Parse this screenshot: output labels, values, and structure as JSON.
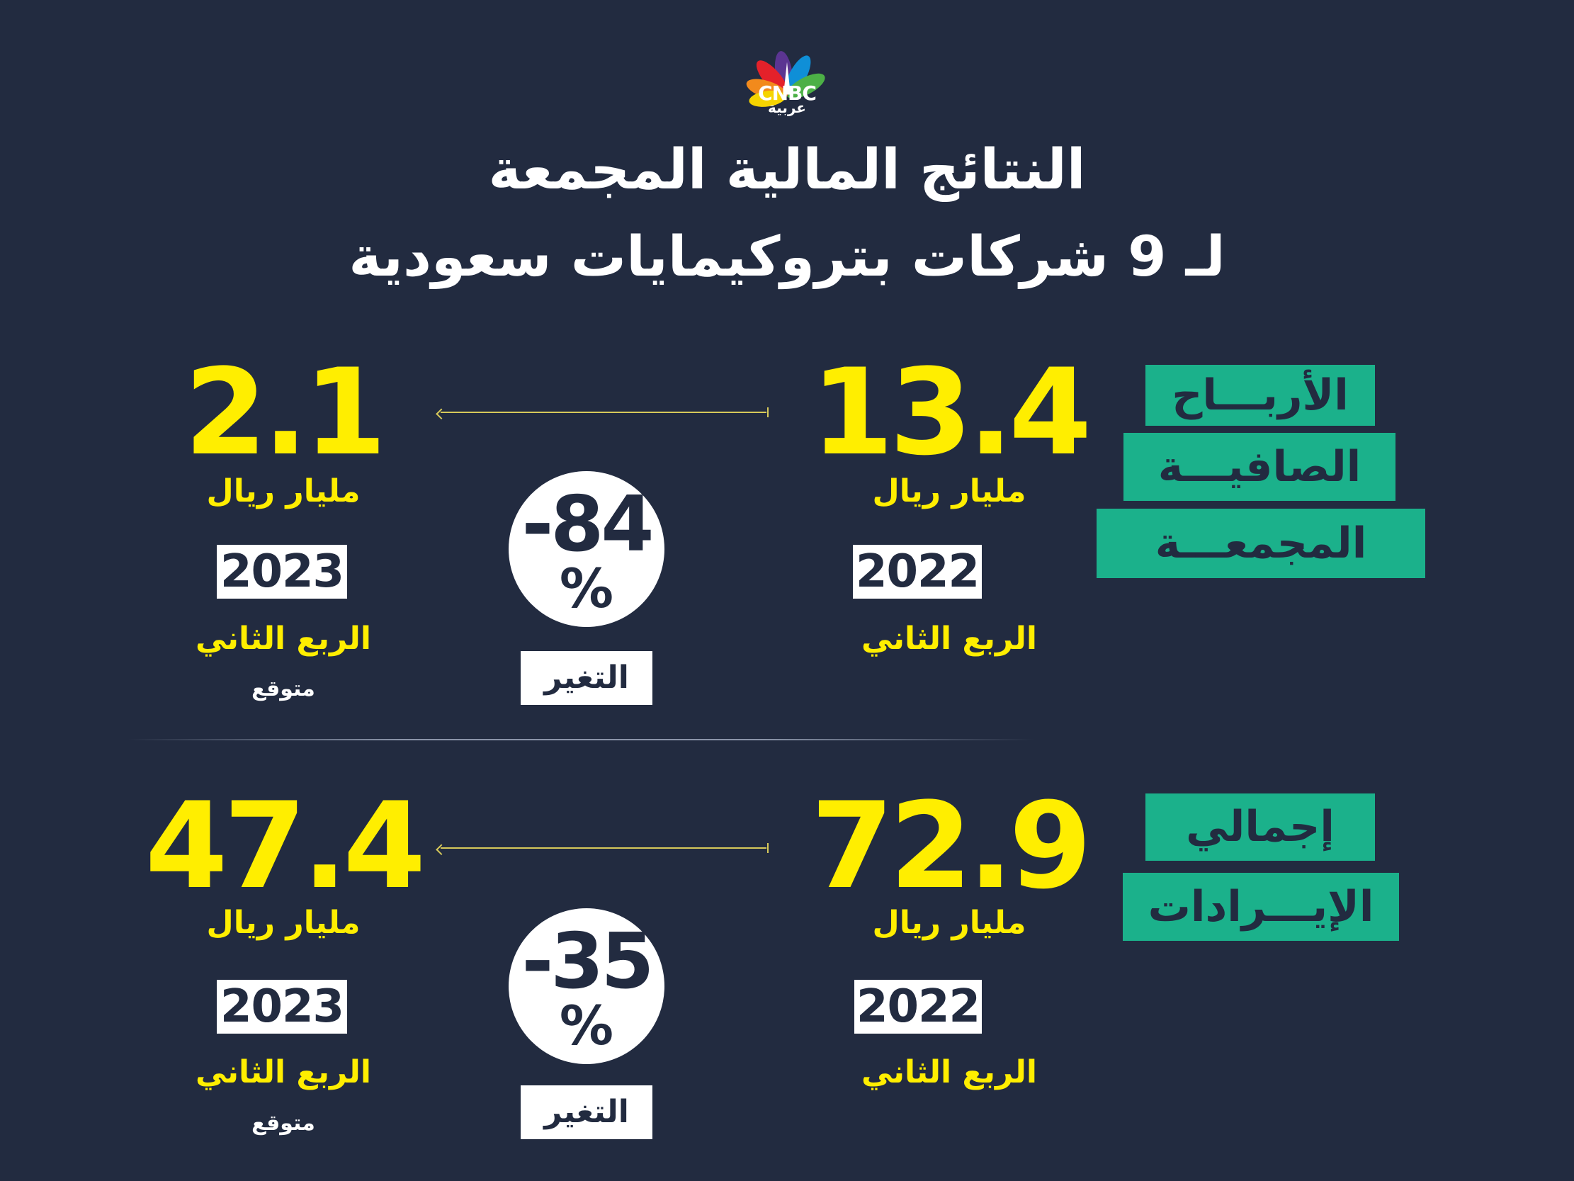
{
  "logo": {
    "brand": "CNBC",
    "sub": "عربية",
    "colors": [
      "#f5d400",
      "#f28a1c",
      "#e4212a",
      "#5b3592",
      "#0f8fd7",
      "#4cb046"
    ]
  },
  "title": {
    "line1": "النتائج المالية المجمعة",
    "line2": "لـ 9 شركات بتروكيمايات سعودية"
  },
  "sections": [
    {
      "labels": [
        "الأربـــاح",
        "الصافيـــة",
        "المجمعـــة"
      ],
      "left": {
        "value": "2.1",
        "unit": "مليار ريال",
        "year": "2023",
        "quarter": "الربع الثاني",
        "note": "متوقع"
      },
      "right": {
        "value": "13.4",
        "unit": "مليار ريال",
        "year": "2022",
        "quarter": "الربع الثاني"
      },
      "change": {
        "value": "-84",
        "percent": "%",
        "label": "التغير"
      }
    },
    {
      "labels": [
        "إجمالي",
        "الإيـــرادات"
      ],
      "left": {
        "value": "47.4",
        "unit": "مليار ريال",
        "year": "2023",
        "quarter": "الربع الثاني",
        "note": "متوقع"
      },
      "right": {
        "value": "72.9",
        "unit": "مليار ريال",
        "year": "2022",
        "quarter": "الربع الثاني"
      },
      "change": {
        "value": "-35",
        "percent": "%",
        "label": "التغير"
      }
    }
  ],
  "colors": {
    "background": "#222b40",
    "yellow": "#ffee00",
    "green": "#1bb18b",
    "white": "#ffffff"
  }
}
